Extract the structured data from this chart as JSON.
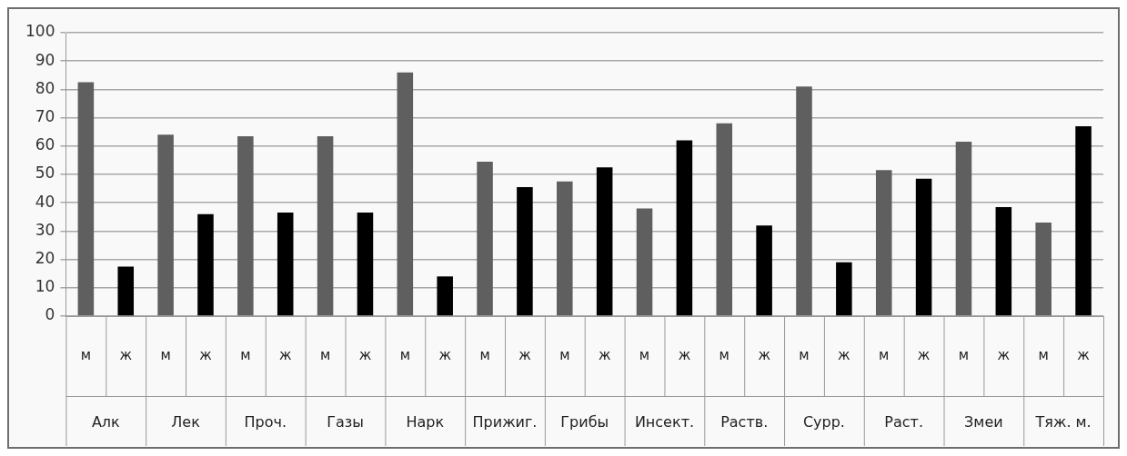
{
  "chart_data": {
    "type": "bar",
    "categories": [
      "Алк",
      "Лек",
      "Проч.",
      "Газы",
      "Нарк",
      "Прижиг.",
      "Грибы",
      "Инсект.",
      "Раств.",
      "Сурр.",
      "Раст.",
      "Змеи",
      "Тяж. м."
    ],
    "series": [
      {
        "name": "м",
        "color": "#5f5f5f",
        "values": [
          82.5,
          64,
          63.5,
          63.5,
          86,
          54.5,
          47.5,
          38,
          68,
          81,
          51.5,
          61.5,
          33
        ]
      },
      {
        "name": "ж",
        "color": "#000000",
        "values": [
          17.5,
          36,
          36.5,
          36.5,
          14,
          45.5,
          52.5,
          62,
          32,
          19,
          48.5,
          38.5,
          67
        ]
      }
    ],
    "ylim": [
      0,
      100
    ],
    "yticks": [
      0,
      10,
      20,
      30,
      40,
      50,
      60,
      70,
      80,
      90,
      100
    ],
    "grid": "y",
    "legend": false
  }
}
